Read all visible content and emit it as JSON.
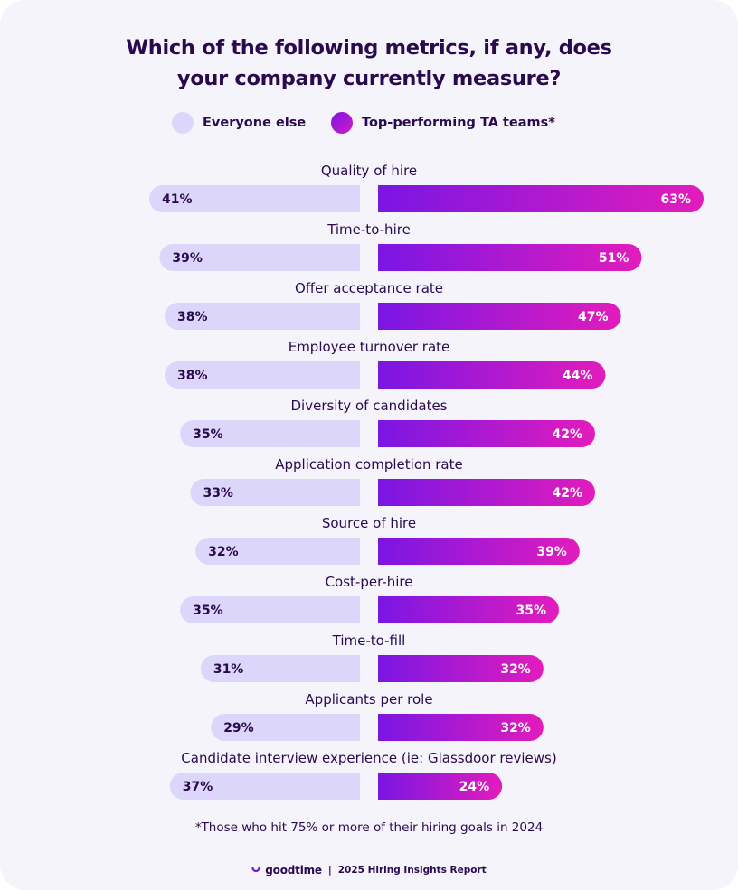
{
  "chart_data": {
    "type": "bar",
    "title": "Which of the following metrics, if any, does your company currently measure?",
    "title_lines": [
      "Which of the following metrics, if any, does",
      "your company currently measure?"
    ],
    "orientation": "horizontal-butterfly",
    "value_suffix": "%",
    "legend_placement": "top-center",
    "grid": false,
    "categories": [
      "Quality of hire",
      "Time-to-hire",
      "Offer acceptance rate",
      "Employee turnover rate",
      "Diversity of candidates",
      "Application completion rate",
      "Source of hire",
      "Cost-per-hire",
      "Time-to-fill",
      "Applicants per role",
      "Candidate interview experience (ie: Glassdoor reviews)"
    ],
    "series": [
      {
        "name": "Everyone else",
        "color": "#dcd6fb",
        "values": [
          41,
          39,
          38,
          38,
          35,
          33,
          32,
          35,
          31,
          29,
          37
        ]
      },
      {
        "name": "Top-performing TA teams*",
        "color": "#8a18e0",
        "color_end": "#e21cbc",
        "values": [
          63,
          51,
          47,
          44,
          42,
          42,
          39,
          35,
          32,
          32,
          24
        ]
      }
    ]
  },
  "footnote": "*Those who hit 75% or more of their hiring goals in 2024",
  "brand": {
    "name": "goodtime",
    "separator": "|",
    "report": "2025 Hiring Insights Report"
  },
  "colors": {
    "background": "#f6f4fb",
    "text": "#2a0a4e",
    "everyone_else": "#dcd6fb",
    "top_start": "#7a16e3",
    "top_end": "#e21cbc",
    "brand_logo": "#7a16e3"
  }
}
